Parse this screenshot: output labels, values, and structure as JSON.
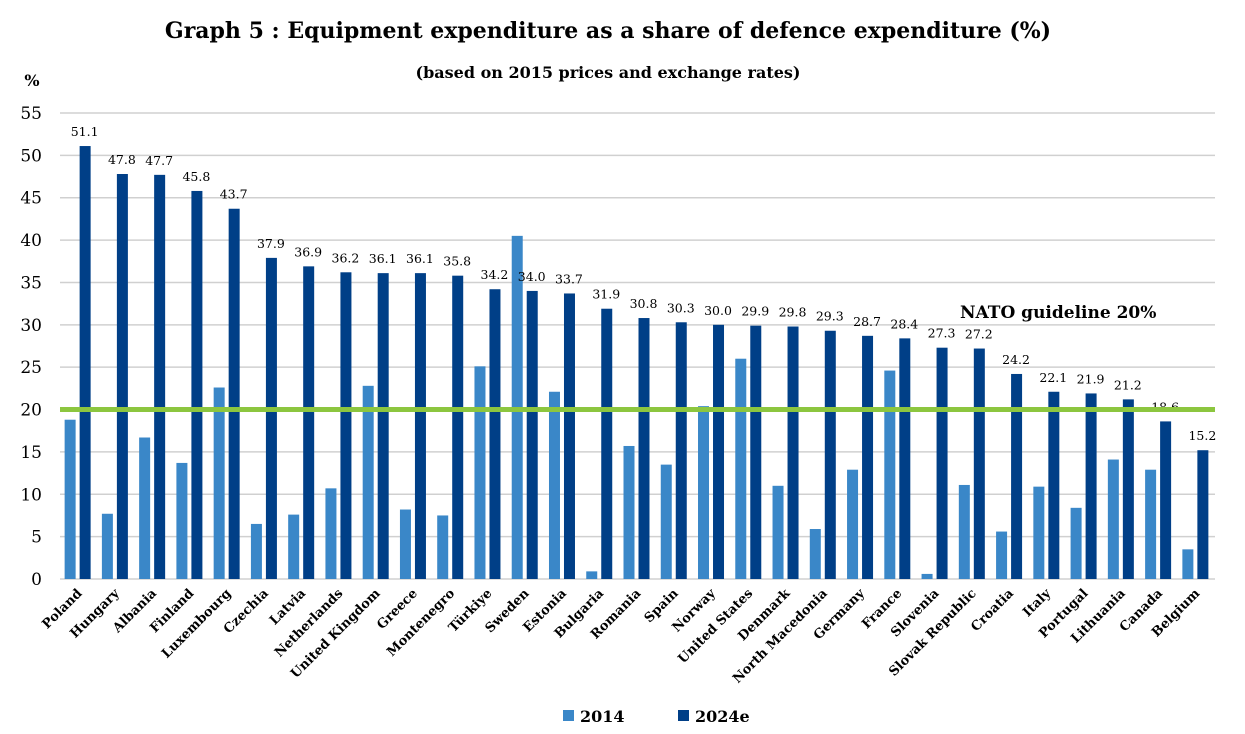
{
  "chart_data": {
    "type": "bar",
    "title": "Graph 5 : Equipment expenditure as a share of defence expenditure (%)",
    "subtitle": "(based on 2015 prices and exchange rates)",
    "ylabel": "%",
    "ylim": [
      0,
      55
    ],
    "yticks": [
      0,
      5,
      10,
      15,
      20,
      25,
      30,
      35,
      40,
      45,
      50,
      55
    ],
    "grid": true,
    "legend_position": "bottom",
    "categories": [
      "Poland",
      "Hungary",
      "Albania",
      "Finland",
      "Luxembourg",
      "Czechia",
      "Latvia",
      "Netherlands",
      "United Kingdom",
      "Greece",
      "Montenegro",
      "Türkiye",
      "Sweden",
      "Estonia",
      "Bulgaria",
      "Romania",
      "Spain",
      "Norway",
      "United States",
      "Denmark",
      "North Macedonia",
      "Germany",
      "France",
      "Slovenia",
      "Slovak Republic",
      "Croatia",
      "Italy",
      "Portugal",
      "Lithuania",
      "Canada",
      "Belgium"
    ],
    "series": [
      {
        "name": "2014",
        "color": "#3a87c8",
        "values": [
          18.8,
          7.7,
          16.7,
          13.7,
          22.6,
          6.5,
          7.6,
          10.7,
          22.8,
          8.2,
          7.5,
          25.1,
          40.5,
          22.1,
          0.9,
          15.7,
          13.5,
          20.4,
          26.0,
          11.0,
          5.9,
          12.9,
          24.6,
          0.6,
          11.1,
          5.6,
          10.9,
          8.4,
          14.1,
          12.9,
          3.5
        ]
      },
      {
        "name": "2024e",
        "color": "#003f87",
        "values": [
          51.1,
          47.8,
          47.7,
          45.8,
          43.7,
          37.9,
          36.9,
          36.2,
          36.1,
          36.1,
          35.8,
          34.2,
          34.0,
          33.7,
          31.9,
          30.8,
          30.3,
          30.0,
          29.9,
          29.8,
          29.3,
          28.7,
          28.4,
          27.3,
          27.2,
          24.2,
          22.1,
          21.9,
          21.2,
          18.6,
          15.2
        ],
        "labels": [
          "51.1",
          "47.8",
          "47.7",
          "45.8",
          "43.7",
          "37.9",
          "36.9",
          "36.2",
          "36.1",
          "36.1",
          "35.8",
          "34.2",
          "34.0",
          "33.7",
          "31.9",
          "30.8",
          "30.3",
          "30.0",
          "29.9",
          "29.8",
          "29.3",
          "28.7",
          "28.4",
          "27.3",
          "27.2",
          "24.2",
          "22.1",
          "21.9",
          "21.2",
          "18.6",
          "15.2"
        ]
      }
    ],
    "reference_line": {
      "value": 20,
      "label": "NATO guideline 20%",
      "color": "#8cc63f"
    }
  }
}
